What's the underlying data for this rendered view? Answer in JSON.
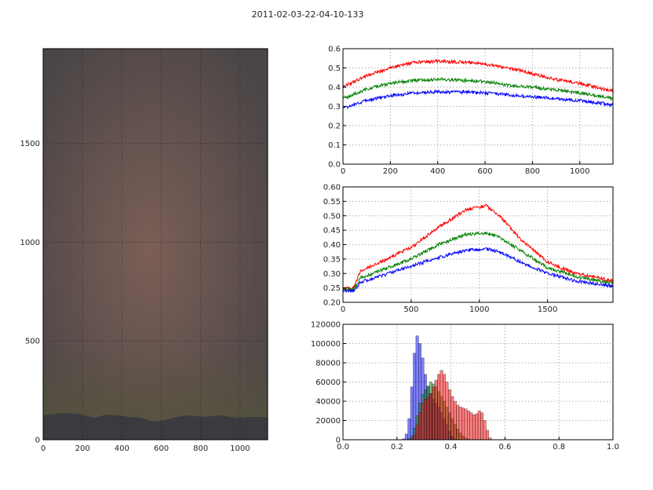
{
  "figure": {
    "title": "2011-02-03-22-04-10-133"
  },
  "chart_data": [
    {
      "type": "image",
      "xticks": [
        0,
        200,
        400,
        600,
        800,
        1000
      ],
      "yticks": [
        0,
        500,
        1000,
        1500
      ],
      "xlim": [
        0,
        1140
      ],
      "ylim": [
        0,
        1980
      ],
      "grid": true,
      "colors": {
        "sky_center": "#7c5f57",
        "sky_edge": "#4a4546",
        "horizon": "#57553c",
        "mountains": "#3a3b3f"
      }
    },
    {
      "type": "line",
      "xlim": [
        0,
        1140
      ],
      "ylim": [
        0.0,
        0.6
      ],
      "xticks": [
        0,
        200,
        400,
        600,
        800,
        1000
      ],
      "yticks": [
        "0.0",
        "0.1",
        "0.2",
        "0.3",
        "0.4",
        "0.5",
        "0.6"
      ],
      "grid": true,
      "series": [
        {
          "color": "#ff0000",
          "x": [
            0,
            100,
            200,
            300,
            400,
            500,
            600,
            700,
            800,
            900,
            1000,
            1100,
            1140
          ],
          "values": [
            0.4,
            0.46,
            0.5,
            0.53,
            0.535,
            0.53,
            0.52,
            0.5,
            0.47,
            0.44,
            0.42,
            0.39,
            0.38
          ]
        },
        {
          "color": "#008000",
          "x": [
            0,
            100,
            200,
            300,
            400,
            500,
            600,
            700,
            800,
            900,
            1000,
            1100,
            1140
          ],
          "values": [
            0.34,
            0.39,
            0.42,
            0.435,
            0.44,
            0.435,
            0.43,
            0.41,
            0.4,
            0.385,
            0.37,
            0.35,
            0.34
          ]
        },
        {
          "color": "#0000ff",
          "x": [
            0,
            100,
            200,
            300,
            400,
            500,
            600,
            700,
            800,
            900,
            1000,
            1100,
            1140
          ],
          "values": [
            0.29,
            0.33,
            0.355,
            0.37,
            0.375,
            0.375,
            0.37,
            0.36,
            0.35,
            0.34,
            0.33,
            0.315,
            0.305
          ]
        }
      ]
    },
    {
      "type": "line",
      "xlim": [
        0,
        1980
      ],
      "ylim": [
        0.2,
        0.6
      ],
      "xticks": [
        0,
        500,
        1000,
        1500
      ],
      "yticks": [
        "0.20",
        "0.25",
        "0.30",
        "0.35",
        "0.40",
        "0.45",
        "0.50",
        "0.55",
        "0.60"
      ],
      "grid": true,
      "series": [
        {
          "color": "#ff0000",
          "x": [
            0,
            80,
            130,
            300,
            500,
            700,
            900,
            1050,
            1150,
            1300,
            1500,
            1700,
            1980
          ],
          "values": [
            0.25,
            0.25,
            0.31,
            0.345,
            0.39,
            0.46,
            0.52,
            0.535,
            0.5,
            0.42,
            0.34,
            0.3,
            0.275
          ]
        },
        {
          "color": "#008000",
          "x": [
            0,
            80,
            130,
            300,
            500,
            700,
            900,
            1050,
            1150,
            1300,
            1500,
            1700,
            1980
          ],
          "values": [
            0.245,
            0.245,
            0.285,
            0.315,
            0.35,
            0.4,
            0.435,
            0.44,
            0.425,
            0.38,
            0.32,
            0.29,
            0.265
          ]
        },
        {
          "color": "#0000ff",
          "x": [
            0,
            80,
            130,
            300,
            500,
            700,
            900,
            1050,
            1150,
            1300,
            1500,
            1700,
            1980
          ],
          "values": [
            0.24,
            0.24,
            0.27,
            0.295,
            0.325,
            0.355,
            0.38,
            0.385,
            0.375,
            0.34,
            0.3,
            0.275,
            0.255
          ]
        }
      ]
    },
    {
      "type": "histogram",
      "xlim": [
        0.0,
        1.0
      ],
      "ylim": [
        0,
        120000
      ],
      "xticks": [
        "0.0",
        "0.2",
        "0.4",
        "0.6",
        "0.8",
        "1.0"
      ],
      "yticks": [
        "0",
        "20000",
        "40000",
        "60000",
        "80000",
        "100000",
        "120000"
      ],
      "grid": true,
      "series": [
        {
          "color": "#0000ff",
          "opacity": 0.5,
          "bins": [
            0.22,
            0.23,
            0.24,
            0.25,
            0.26,
            0.27,
            0.28,
            0.29,
            0.3,
            0.31,
            0.32,
            0.33,
            0.34,
            0.35,
            0.36,
            0.37,
            0.38,
            0.39,
            0.4,
            0.41
          ],
          "values": [
            1000,
            6000,
            22000,
            55000,
            90000,
            108000,
            100000,
            85000,
            68000,
            55000,
            48000,
            42000,
            38000,
            34000,
            28000,
            22000,
            16000,
            9000,
            4000,
            1000
          ]
        },
        {
          "color": "#008000",
          "opacity": 0.5,
          "bins": [
            0.24,
            0.25,
            0.26,
            0.27,
            0.28,
            0.29,
            0.3,
            0.31,
            0.32,
            0.33,
            0.34,
            0.35,
            0.36,
            0.37,
            0.38,
            0.39,
            0.4,
            0.41,
            0.42,
            0.43,
            0.44,
            0.45,
            0.46
          ],
          "values": [
            1000,
            4000,
            12000,
            25000,
            38000,
            47000,
            52000,
            56000,
            60000,
            58000,
            55000,
            50000,
            45000,
            40000,
            34000,
            28000,
            22000,
            16000,
            11000,
            7000,
            4000,
            2000,
            500
          ]
        },
        {
          "color": "#ff0000",
          "opacity": 0.5,
          "bins": [
            0.25,
            0.26,
            0.27,
            0.28,
            0.29,
            0.3,
            0.31,
            0.32,
            0.33,
            0.34,
            0.35,
            0.36,
            0.37,
            0.38,
            0.39,
            0.4,
            0.41,
            0.42,
            0.43,
            0.44,
            0.45,
            0.46,
            0.47,
            0.48,
            0.49,
            0.5,
            0.51,
            0.52,
            0.53,
            0.54
          ],
          "values": [
            1000,
            5000,
            15000,
            28000,
            38000,
            42000,
            44000,
            48000,
            55000,
            62000,
            68000,
            72000,
            68000,
            60000,
            52000,
            45000,
            40000,
            36000,
            34000,
            33000,
            32000,
            30000,
            28000,
            26000,
            27000,
            30000,
            28000,
            20000,
            10000,
            2000
          ]
        }
      ]
    }
  ]
}
